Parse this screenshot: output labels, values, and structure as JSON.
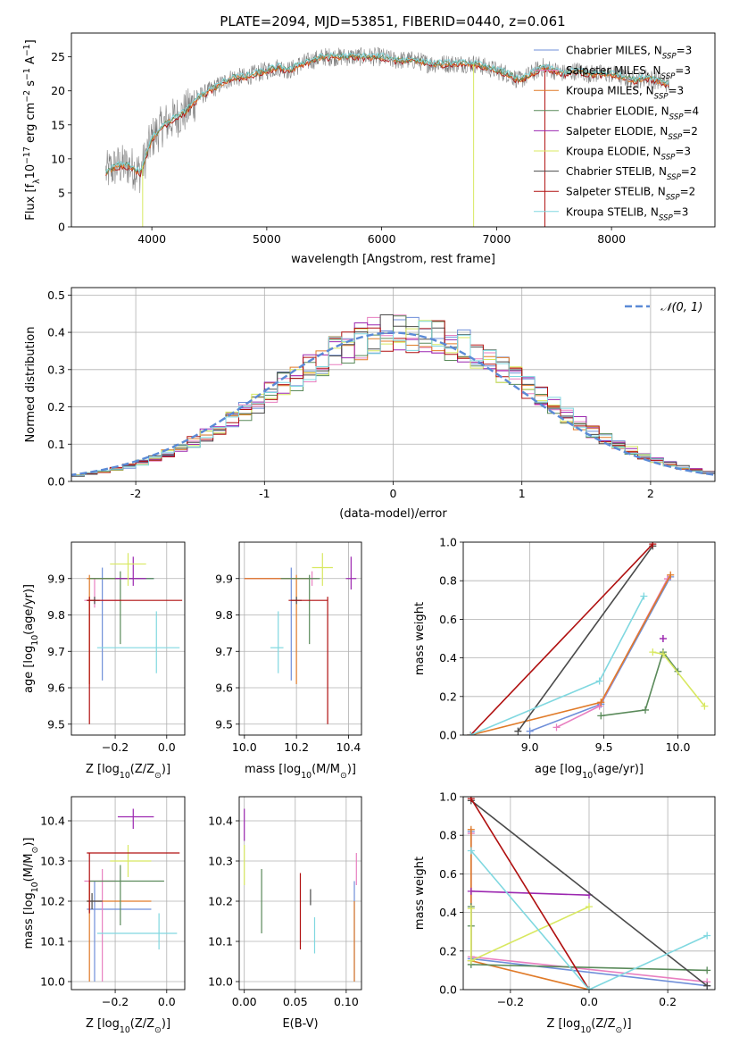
{
  "figure_title": "PLATE=2094, MJD=53851, FIBERID=0440, z=0.061",
  "colors": {
    "chabrier_miles": "#6f8fd9",
    "salpeter_miles": "#e87fc0",
    "kroupa_miles": "#e07a28",
    "chabrier_elodie": "#5a8a5a",
    "salpeter_elodie": "#9c27b0",
    "kroupa_elodie": "#d8e860",
    "chabrier_stelib": "#4a4a4a",
    "salpeter_stelib": "#b01010",
    "kroupa_stelib": "#80d8e0",
    "normal_curve": "#5b8ad6",
    "grid": "#b0b0b0"
  },
  "chart_data": [
    {
      "id": "spectrum",
      "type": "line",
      "title": "PLATE=2094, MJD=53851, FIBERID=0440, z=0.061",
      "xlabel": "wavelength [Angstrom, rest frame]",
      "ylabel_parts": [
        "Flux [f",
        "λ",
        "10",
        "−17",
        " erg cm",
        "−2",
        " s",
        "−1",
        " A",
        "−1",
        "]"
      ],
      "xlim": [
        3300,
        8900
      ],
      "ylim": [
        0,
        28.5
      ],
      "xticks": [
        4000,
        5000,
        6000,
        7000,
        8000
      ],
      "yticks": [
        0,
        5,
        10,
        15,
        20,
        25
      ],
      "grid": false,
      "legend_position": "right",
      "legend": [
        {
          "model": "Chabrier MILES",
          "nssp": "3",
          "color_key": "chabrier_miles"
        },
        {
          "model": "Salpeter MILES",
          "nssp": "3",
          "color_key": "salpeter_miles"
        },
        {
          "model": "Kroupa MILES",
          "nssp": "3",
          "color_key": "kroupa_miles"
        },
        {
          "model": "Chabrier ELODIE",
          "nssp": "4",
          "color_key": "chabrier_elodie"
        },
        {
          "model": "Salpeter ELODIE",
          "nssp": "2",
          "color_key": "salpeter_elodie"
        },
        {
          "model": "Kroupa ELODIE",
          "nssp": "3",
          "color_key": "kroupa_elodie"
        },
        {
          "model": "Chabrier STELIB",
          "nssp": "2",
          "color_key": "chabrier_stelib"
        },
        {
          "model": "Salpeter STELIB",
          "nssp": "2",
          "color_key": "salpeter_stelib"
        },
        {
          "model": "Kroupa STELIB",
          "nssp": "3",
          "color_key": "kroupa_stelib"
        }
      ],
      "legend_prefix": "N",
      "legend_subscript": "SSP",
      "continuum": [
        [
          3600,
          8
        ],
        [
          3700,
          9
        ],
        [
          3800,
          9
        ],
        [
          3900,
          8
        ],
        [
          4000,
          13
        ],
        [
          4100,
          15
        ],
        [
          4200,
          16
        ],
        [
          4300,
          17
        ],
        [
          4400,
          19
        ],
        [
          4500,
          20
        ],
        [
          4600,
          21
        ],
        [
          4700,
          22
        ],
        [
          4800,
          22
        ],
        [
          4900,
          22.5
        ],
        [
          5000,
          23
        ],
        [
          5100,
          23.5
        ],
        [
          5200,
          23
        ],
        [
          5300,
          24
        ],
        [
          5400,
          24.5
        ],
        [
          5500,
          25
        ],
        [
          5600,
          25
        ],
        [
          5700,
          25
        ],
        [
          5800,
          25
        ],
        [
          5900,
          25
        ],
        [
          6000,
          25
        ],
        [
          6100,
          24.5
        ],
        [
          6200,
          24.5
        ],
        [
          6300,
          24.5
        ],
        [
          6400,
          24
        ],
        [
          6500,
          24
        ],
        [
          6600,
          24
        ],
        [
          6700,
          24
        ],
        [
          6800,
          24
        ],
        [
          6900,
          23.5
        ],
        [
          7000,
          23
        ],
        [
          7100,
          22.5
        ],
        [
          7200,
          21.5
        ],
        [
          7300,
          22.5
        ],
        [
          7400,
          23.5
        ],
        [
          7500,
          23
        ],
        [
          7600,
          22.5
        ],
        [
          7700,
          23
        ],
        [
          7800,
          22.5
        ],
        [
          7900,
          22.5
        ],
        [
          8000,
          22.5
        ],
        [
          8100,
          22
        ],
        [
          8200,
          21.5
        ],
        [
          8300,
          22
        ],
        [
          8400,
          21.5
        ],
        [
          8500,
          21
        ]
      ],
      "spikes": [
        {
          "x": 3920,
          "to": 0,
          "color_key": "kroupa_elodie"
        },
        {
          "x": 6800,
          "to": 0,
          "color_key": "kroupa_elodie"
        },
        {
          "x": 7420,
          "to": 0,
          "color_key": "salpeter_stelib"
        }
      ]
    },
    {
      "id": "residuals",
      "type": "histogram",
      "xlabel": "(data-model)/error",
      "ylabel": "Normed distribution",
      "xlim": [
        -2.5,
        2.5
      ],
      "ylim": [
        0,
        0.52
      ],
      "xticks": [
        -2,
        -1,
        0,
        1,
        2
      ],
      "yticks": [
        0.0,
        0.1,
        0.2,
        0.3,
        0.4,
        0.5
      ],
      "ytick_labels": [
        "0.0",
        "0.1",
        "0.2",
        "0.3",
        "0.4",
        "0.5"
      ],
      "grid": true,
      "legend_position": "upper right",
      "legend_label": "𝒩(0, 1)",
      "bin_width": 0.1,
      "bin_start": -2.6
    },
    {
      "id": "age_vs_Z",
      "type": "scatter",
      "xlabel_parts": [
        "Z [log",
        "10",
        "(Z/Z",
        "⊙",
        ")]"
      ],
      "ylabel_parts": [
        "age  [log",
        "10",
        "(age/yr)]"
      ],
      "xlim": [
        -0.37,
        0.07
      ],
      "ylim": [
        9.47,
        10.0
      ],
      "xticks": [
        -0.2,
        0.0
      ],
      "xtick_labels": [
        "−0.2",
        "0.0"
      ],
      "yticks": [
        9.5,
        9.6,
        9.7,
        9.8,
        9.9
      ],
      "grid": true,
      "points": [
        {
          "k": "chabrier_miles",
          "x": -0.25,
          "xl": -0.3,
          "xh": -0.05,
          "y": 9.9,
          "yl": 9.62,
          "yh": 9.93
        },
        {
          "k": "salpeter_miles",
          "x": -0.28,
          "xl": -0.32,
          "xh": -0.18,
          "y": 9.84,
          "yl": 9.82,
          "yh": 9.9
        },
        {
          "k": "kroupa_miles",
          "x": -0.3,
          "xl": -0.31,
          "xh": -0.15,
          "y": 9.9,
          "yl": 9.61,
          "yh": 9.91
        },
        {
          "k": "chabrier_elodie",
          "x": -0.18,
          "xl": -0.3,
          "xh": -0.05,
          "y": 9.9,
          "yl": 9.72,
          "yh": 9.92
        },
        {
          "k": "salpeter_elodie",
          "x": -0.13,
          "xl": -0.2,
          "xh": -0.08,
          "y": 9.9,
          "yl": 9.88,
          "yh": 9.96
        },
        {
          "k": "kroupa_elodie",
          "x": -0.15,
          "xl": -0.22,
          "xh": -0.08,
          "y": 9.94,
          "yl": 9.88,
          "yh": 9.97
        },
        {
          "k": "chabrier_stelib",
          "x": -0.28,
          "xl": -0.31,
          "xh": -0.26,
          "y": 9.84,
          "yl": 9.83,
          "yh": 9.85
        },
        {
          "k": "salpeter_stelib",
          "x": -0.3,
          "xl": -0.31,
          "xh": 0.06,
          "y": 9.84,
          "yl": 9.5,
          "yh": 9.85
        },
        {
          "k": "kroupa_stelib",
          "x": -0.04,
          "xl": -0.27,
          "xh": 0.05,
          "y": 9.71,
          "yl": 9.64,
          "yh": 9.81
        }
      ]
    },
    {
      "id": "age_vs_mass",
      "type": "scatter",
      "xlabel_parts": [
        "mass [log",
        "10",
        "(M/M",
        "⊙",
        ")]"
      ],
      "xlim": [
        9.98,
        10.45
      ],
      "ylim": [
        9.47,
        10.0
      ],
      "xticks": [
        10.0,
        10.2,
        10.4
      ],
      "xtick_labels": [
        "10.0",
        "10.2",
        "10.4"
      ],
      "yticks": [
        9.5,
        9.6,
        9.7,
        9.8,
        9.9
      ],
      "grid": true,
      "points": [
        {
          "k": "chabrier_miles",
          "x": 10.18,
          "xl": 10.0,
          "xh": 10.25,
          "y": 9.9,
          "yl": 9.62,
          "yh": 9.93
        },
        {
          "k": "salpeter_miles",
          "x": 10.26,
          "xl": 10.0,
          "xh": 10.28,
          "y": 9.9,
          "yl": 9.88,
          "yh": 9.92
        },
        {
          "k": "kroupa_miles",
          "x": 10.2,
          "xl": 10.0,
          "xh": 10.25,
          "y": 9.9,
          "yl": 9.61,
          "yh": 9.91
        },
        {
          "k": "chabrier_elodie",
          "x": 10.25,
          "xl": 10.14,
          "xh": 10.29,
          "y": 9.9,
          "yl": 9.72,
          "yh": 9.91
        },
        {
          "k": "salpeter_elodie",
          "x": 10.41,
          "xl": 10.39,
          "xh": 10.43,
          "y": 9.9,
          "yl": 9.87,
          "yh": 9.96
        },
        {
          "k": "kroupa_elodie",
          "x": 10.3,
          "xl": 10.26,
          "xh": 10.34,
          "y": 9.93,
          "yl": 9.88,
          "yh": 9.97
        },
        {
          "k": "chabrier_stelib",
          "x": 10.2,
          "xl": 10.18,
          "xh": 10.22,
          "y": 9.84,
          "yl": 9.83,
          "yh": 9.85
        },
        {
          "k": "salpeter_stelib",
          "x": 10.32,
          "xl": 10.17,
          "xh": 10.32,
          "y": 9.84,
          "yl": 9.5,
          "yh": 9.85
        },
        {
          "k": "kroupa_stelib",
          "x": 10.13,
          "xl": 10.1,
          "xh": 10.15,
          "y": 9.71,
          "yl": 9.64,
          "yh": 9.81
        }
      ]
    },
    {
      "id": "massweight_vs_age",
      "type": "line",
      "xlabel_parts": [
        "age  [log",
        "10",
        "(age/yr)]"
      ],
      "ylabel": "mass weight",
      "xlim": [
        8.55,
        10.25
      ],
      "ylim": [
        0,
        1.0
      ],
      "xticks": [
        9.0,
        9.5,
        10.0
      ],
      "xtick_labels": [
        "9.0",
        "9.5",
        "10.0"
      ],
      "yticks": [
        0.0,
        0.2,
        0.4,
        0.6,
        0.8,
        1.0
      ],
      "ytick_labels": [
        "0.0",
        "0.2",
        "0.4",
        "0.6",
        "0.8",
        "1.0"
      ],
      "grid": true,
      "series": [
        {
          "k": "chabrier_miles",
          "x": [
            9.0,
            9.48,
            9.95
          ],
          "y": [
            0.02,
            0.16,
            0.82
          ]
        },
        {
          "k": "salpeter_miles",
          "x": [
            9.18,
            9.47,
            9.93
          ],
          "y": [
            0.04,
            0.15,
            0.81
          ]
        },
        {
          "k": "kroupa_miles",
          "x": [
            8.6,
            9.48,
            9.95
          ],
          "y": [
            0.0,
            0.17,
            0.83
          ]
        },
        {
          "k": "chabrier_elodie",
          "x": [
            9.48,
            9.78,
            9.9,
            10.0
          ],
          "y": [
            0.1,
            0.13,
            0.43,
            0.33
          ]
        },
        {
          "k": "salpeter_elodie",
          "x": [
            9.9,
            9.9
          ],
          "y": [
            0.5,
            0.5
          ]
        },
        {
          "k": "kroupa_elodie",
          "x": [
            9.83,
            9.9,
            10.18
          ],
          "y": [
            0.43,
            0.42,
            0.15
          ]
        },
        {
          "k": "chabrier_stelib",
          "x": [
            8.92,
            9.83
          ],
          "y": [
            0.02,
            0.98
          ]
        },
        {
          "k": "salpeter_stelib",
          "x": [
            8.6,
            9.83
          ],
          "y": [
            0.0,
            0.99
          ]
        },
        {
          "k": "kroupa_stelib",
          "x": [
            8.6,
            9.47,
            9.77
          ],
          "y": [
            0.0,
            0.28,
            0.72
          ]
        }
      ]
    },
    {
      "id": "mass_vs_Z",
      "type": "scatter",
      "xlabel_parts": [
        "Z [log",
        "10",
        "(Z/Z",
        "⊙",
        ")]"
      ],
      "ylabel_parts": [
        "mass [log",
        "10",
        "(M/M",
        "⊙",
        ")]"
      ],
      "xlim": [
        -0.37,
        0.07
      ],
      "ylim": [
        9.98,
        10.46
      ],
      "xticks": [
        -0.2,
        0.0
      ],
      "xtick_labels": [
        "−0.2",
        "0.0"
      ],
      "yticks": [
        10.0,
        10.1,
        10.2,
        10.3,
        10.4
      ],
      "ytick_labels": [
        "10.0",
        "10.1",
        "10.2",
        "10.3",
        "10.4"
      ],
      "grid": true,
      "points": [
        {
          "k": "chabrier_miles",
          "x": -0.28,
          "xl": -0.31,
          "xh": -0.06,
          "y": 10.18,
          "yl": 10.0,
          "yh": 10.25
        },
        {
          "k": "salpeter_miles",
          "x": -0.25,
          "xl": -0.32,
          "xh": -0.2,
          "y": 10.25,
          "yl": 10.0,
          "yh": 10.28
        },
        {
          "k": "kroupa_miles",
          "x": -0.3,
          "xl": -0.31,
          "xh": -0.06,
          "y": 10.2,
          "yl": 10.0,
          "yh": 10.25
        },
        {
          "k": "chabrier_elodie",
          "x": -0.18,
          "xl": -0.3,
          "xh": -0.01,
          "y": 10.25,
          "yl": 10.14,
          "yh": 10.29
        },
        {
          "k": "salpeter_elodie",
          "x": -0.13,
          "xl": -0.19,
          "xh": -0.05,
          "y": 10.41,
          "yl": 10.38,
          "yh": 10.43
        },
        {
          "k": "kroupa_elodie",
          "x": -0.15,
          "xl": -0.22,
          "xh": -0.06,
          "y": 10.3,
          "yl": 10.26,
          "yh": 10.34
        },
        {
          "k": "chabrier_stelib",
          "x": -0.29,
          "xl": -0.31,
          "xh": -0.25,
          "y": 10.2,
          "yl": 10.18,
          "yh": 10.22
        },
        {
          "k": "salpeter_stelib",
          "x": -0.3,
          "xl": -0.31,
          "xh": 0.05,
          "y": 10.32,
          "yl": 10.17,
          "yh": 10.32
        },
        {
          "k": "kroupa_stelib",
          "x": -0.03,
          "xl": -0.27,
          "xh": 0.04,
          "y": 10.12,
          "yl": 10.08,
          "yh": 10.17
        }
      ]
    },
    {
      "id": "mass_vs_EBV",
      "type": "scatter",
      "xlabel": "E(B-V)",
      "xlim": [
        -0.005,
        0.115
      ],
      "ylim": [
        9.98,
        10.46
      ],
      "xticks": [
        0.0,
        0.05,
        0.1
      ],
      "xtick_labels": [
        "0.00",
        "0.05",
        "0.10"
      ],
      "yticks": [
        10.0,
        10.1,
        10.2,
        10.3,
        10.4
      ],
      "ytick_labels": [
        "10.0",
        "10.1",
        "10.2",
        "10.3",
        "10.4"
      ],
      "grid": true,
      "points": [
        {
          "k": "chabrier_miles",
          "x": 0.108,
          "y": 10.18,
          "yl": 10.0,
          "yh": 10.25
        },
        {
          "k": "salpeter_miles",
          "x": 0.11,
          "y": 10.28,
          "yl": 10.24,
          "yh": 10.32
        },
        {
          "k": "kroupa_miles",
          "x": 0.108,
          "y": 10.1,
          "yl": 10.0,
          "yh": 10.2
        },
        {
          "k": "chabrier_elodie",
          "x": 0.017,
          "y": 10.2,
          "yl": 10.12,
          "yh": 10.28
        },
        {
          "k": "salpeter_elodie",
          "x": 0.0,
          "y": 10.4,
          "yl": 10.35,
          "yh": 10.43
        },
        {
          "k": "kroupa_elodie",
          "x": 0.0,
          "y": 10.29,
          "yl": 10.24,
          "yh": 10.34
        },
        {
          "k": "chabrier_stelib",
          "x": 0.065,
          "y": 10.21,
          "yl": 10.19,
          "yh": 10.23
        },
        {
          "k": "salpeter_stelib",
          "x": 0.055,
          "y": 10.18,
          "yl": 10.08,
          "yh": 10.27
        },
        {
          "k": "kroupa_stelib",
          "x": 0.069,
          "y": 10.12,
          "yl": 10.07,
          "yh": 10.16
        }
      ]
    },
    {
      "id": "massweight_vs_Z",
      "type": "line",
      "xlabel_parts": [
        "Z [log",
        "10",
        "(Z/Z",
        "⊙",
        ")]"
      ],
      "ylabel": "mass weight",
      "xlim": [
        -0.32,
        0.32
      ],
      "ylim": [
        0,
        1.0
      ],
      "xticks": [
        -0.2,
        0.0,
        0.2
      ],
      "xtick_labels": [
        "−0.2",
        "0.0",
        "0.2"
      ],
      "yticks": [
        0.0,
        0.2,
        0.4,
        0.6,
        0.8,
        1.0
      ],
      "ytick_labels": [
        "0.0",
        "0.2",
        "0.4",
        "0.6",
        "0.8",
        "1.0"
      ],
      "grid": true,
      "series": [
        {
          "k": "chabrier_miles",
          "x": [
            -0.3,
            -0.3,
            0.3
          ],
          "y": [
            0.82,
            0.16,
            0.02
          ]
        },
        {
          "k": "salpeter_miles",
          "x": [
            -0.3,
            -0.3,
            0.3
          ],
          "y": [
            0.81,
            0.17,
            0.04
          ]
        },
        {
          "k": "kroupa_miles",
          "x": [
            -0.3,
            -0.3,
            0.0
          ],
          "y": [
            0.83,
            0.15,
            0.0
          ]
        },
        {
          "k": "chabrier_elodie",
          "x": [
            -0.3,
            -0.3,
            -0.3,
            0.3
          ],
          "y": [
            0.43,
            0.33,
            0.13,
            0.1
          ]
        },
        {
          "k": "salpeter_elodie",
          "x": [
            -0.3,
            0.0
          ],
          "y": [
            0.51,
            0.49
          ]
        },
        {
          "k": "kroupa_elodie",
          "x": [
            -0.3,
            -0.3,
            0.0
          ],
          "y": [
            0.42,
            0.15,
            0.43
          ]
        },
        {
          "k": "chabrier_stelib",
          "x": [
            -0.3,
            0.3
          ],
          "y": [
            0.98,
            0.02
          ]
        },
        {
          "k": "salpeter_stelib",
          "x": [
            -0.3,
            0.0
          ],
          "y": [
            0.99,
            0.0
          ]
        },
        {
          "k": "kroupa_stelib",
          "x": [
            -0.3,
            0.0,
            0.3
          ],
          "y": [
            0.72,
            0.0,
            0.28
          ]
        }
      ]
    }
  ]
}
